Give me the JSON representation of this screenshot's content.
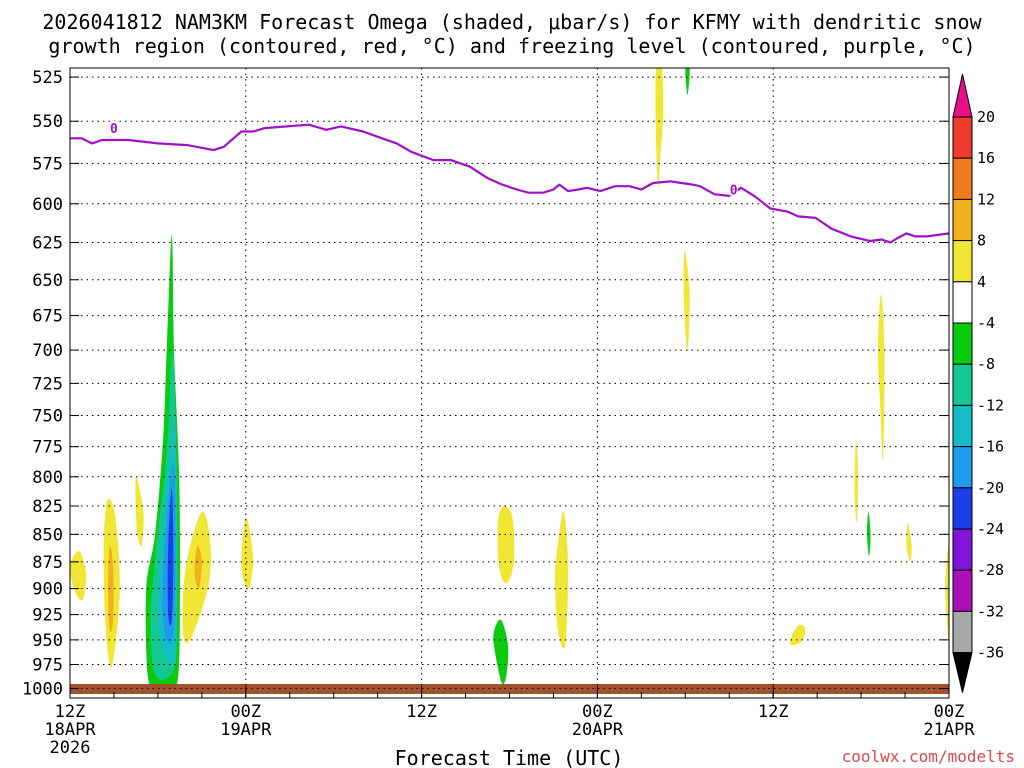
{
  "chart_data": {
    "type": "time-pressure cross-section",
    "title_line1": "2026041812 NAM3KM Forecast Omega (shaded, μbar/s) for KFMY with dendritic snow",
    "title_line2": "growth region (contoured, red, °C) and freezing level (contoured, purple, °C)",
    "xlabel": "Forecast Time (UTC)",
    "credit": "coolwx.com/modelts",
    "y_axis": {
      "labels": [
        "525",
        "550",
        "575",
        "600",
        "625",
        "650",
        "675",
        "700",
        "725",
        "750",
        "775",
        "800",
        "825",
        "850",
        "875",
        "900",
        "925",
        "950",
        "975",
        "1000"
      ],
      "range_hPa": [
        520,
        1010
      ]
    },
    "x_axis": {
      "range_hours": [
        0,
        60
      ],
      "ticks": [
        {
          "hour": 0,
          "line1": "12Z",
          "line2": "18APR",
          "line3": "2026"
        },
        {
          "hour": 12,
          "line1": "00Z",
          "line2": "19APR",
          "line3": ""
        },
        {
          "hour": 24,
          "line1": "12Z",
          "line2": "",
          "line3": ""
        },
        {
          "hour": 36,
          "line1": "00Z",
          "line2": "20APR",
          "line3": ""
        },
        {
          "hour": 48,
          "line1": "12Z",
          "line2": "",
          "line3": ""
        },
        {
          "hour": 60,
          "line1": "00Z",
          "line2": "21APR",
          "line3": ""
        }
      ]
    },
    "colorbar": {
      "labels": [
        "20",
        "16",
        "12",
        "8",
        "4",
        "-4",
        "-8",
        "-12",
        "-16",
        "-20",
        "-24",
        "-28",
        "-32",
        "-36"
      ],
      "bins": [
        {
          "color": "#ea0f89"
        },
        {
          "color": "#ef3a2d"
        },
        {
          "color": "#f27b1d"
        },
        {
          "color": "#efb21e"
        },
        {
          "color": "#f0e633"
        },
        {
          "color": "#ffffff"
        },
        {
          "color": "#0bcb0f"
        },
        {
          "color": "#13c892"
        },
        {
          "color": "#13bcc6"
        },
        {
          "color": "#1e9cec"
        },
        {
          "color": "#1e3ee8"
        },
        {
          "color": "#7f15d9"
        },
        {
          "color": "#aa0fb9"
        },
        {
          "color": "#a8a8a8"
        },
        {
          "color": "#000000"
        }
      ]
    },
    "freezing_level": {
      "label": "0",
      "color": "#a010c8",
      "label_points": [
        {
          "hour": 3.0,
          "hPa": 554
        },
        {
          "hour": 45.3,
          "hPa": 591
        }
      ],
      "points": [
        {
          "hour": 0.0,
          "hPa": 560
        },
        {
          "hour": 0.8,
          "hPa": 560
        },
        {
          "hour": 1.5,
          "hPa": 563
        },
        {
          "hour": 2.2,
          "hPa": 561
        },
        {
          "hour": 4.0,
          "hPa": 561
        },
        {
          "hour": 6.0,
          "hPa": 563
        },
        {
          "hour": 8.0,
          "hPa": 564
        },
        {
          "hour": 9.8,
          "hPa": 567
        },
        {
          "hour": 10.5,
          "hPa": 565
        },
        {
          "hour": 11.7,
          "hPa": 556
        },
        {
          "hour": 12.5,
          "hPa": 556
        },
        {
          "hour": 13.3,
          "hPa": 554
        },
        {
          "hour": 14.8,
          "hPa": 553
        },
        {
          "hour": 16.3,
          "hPa": 552
        },
        {
          "hour": 17.5,
          "hPa": 555
        },
        {
          "hour": 18.5,
          "hPa": 553
        },
        {
          "hour": 20.0,
          "hPa": 556
        },
        {
          "hour": 21.3,
          "hPa": 560
        },
        {
          "hour": 22.3,
          "hPa": 563
        },
        {
          "hour": 23.3,
          "hPa": 568
        },
        {
          "hour": 24.8,
          "hPa": 573
        },
        {
          "hour": 26.0,
          "hPa": 573
        },
        {
          "hour": 27.3,
          "hPa": 577
        },
        {
          "hour": 28.5,
          "hPa": 584
        },
        {
          "hour": 29.5,
          "hPa": 588
        },
        {
          "hour": 30.5,
          "hPa": 591
        },
        {
          "hour": 31.3,
          "hPa": 593
        },
        {
          "hour": 32.3,
          "hPa": 593
        },
        {
          "hour": 33.0,
          "hPa": 591
        },
        {
          "hour": 33.4,
          "hPa": 588
        },
        {
          "hour": 34.0,
          "hPa": 592
        },
        {
          "hour": 34.7,
          "hPa": 591
        },
        {
          "hour": 35.3,
          "hPa": 590
        },
        {
          "hour": 36.2,
          "hPa": 592
        },
        {
          "hour": 37.2,
          "hPa": 589
        },
        {
          "hour": 38.2,
          "hPa": 589
        },
        {
          "hour": 39.0,
          "hPa": 591
        },
        {
          "hour": 39.8,
          "hPa": 587
        },
        {
          "hour": 41.0,
          "hPa": 586
        },
        {
          "hour": 42.5,
          "hPa": 588
        },
        {
          "hour": 43.0,
          "hPa": 589
        },
        {
          "hour": 44.0,
          "hPa": 594
        },
        {
          "hour": 45.0,
          "hPa": 595
        },
        {
          "hour": 45.8,
          "hPa": 590
        },
        {
          "hour": 46.7,
          "hPa": 595
        },
        {
          "hour": 47.8,
          "hPa": 603
        },
        {
          "hour": 49.0,
          "hPa": 605
        },
        {
          "hour": 49.7,
          "hPa": 608
        },
        {
          "hour": 50.9,
          "hPa": 609
        },
        {
          "hour": 52.0,
          "hPa": 616
        },
        {
          "hour": 53.3,
          "hPa": 621
        },
        {
          "hour": 54.6,
          "hPa": 624
        },
        {
          "hour": 55.4,
          "hPa": 623
        },
        {
          "hour": 56.0,
          "hPa": 625
        },
        {
          "hour": 56.5,
          "hPa": 622
        },
        {
          "hour": 57.1,
          "hPa": 619
        },
        {
          "hour": 57.7,
          "hPa": 621
        },
        {
          "hour": 58.5,
          "hPa": 621
        },
        {
          "hour": 60.0,
          "hPa": 619
        }
      ]
    },
    "ground_color": "#a0522d",
    "omega_regions": [
      {
        "name": "omega-green-main",
        "bin": "-8 to -4",
        "color": "#0bcb0f",
        "points": [
          {
            "hour": 6.95,
            "hPa": 620
          },
          {
            "hour": 7.1,
            "hPa": 700
          },
          {
            "hour": 7.45,
            "hPa": 800
          },
          {
            "hour": 7.5,
            "hPa": 900
          },
          {
            "hour": 7.4,
            "hPa": 985
          },
          {
            "hour": 6.9,
            "hPa": 1000
          },
          {
            "hour": 5.9,
            "hPa": 1000
          },
          {
            "hour": 5.3,
            "hPa": 985
          },
          {
            "hour": 5.2,
            "hPa": 900
          },
          {
            "hour": 5.8,
            "hPa": 850
          },
          {
            "hour": 6.35,
            "hPa": 770
          },
          {
            "hour": 6.6,
            "hPa": 700
          }
        ]
      },
      {
        "name": "omega-teal-core",
        "bin": "-12 to -8",
        "color": "#13c892",
        "points": [
          {
            "hour": 7.0,
            "hPa": 700
          },
          {
            "hour": 7.3,
            "hPa": 800
          },
          {
            "hour": 7.3,
            "hPa": 950
          },
          {
            "hour": 6.9,
            "hPa": 985
          },
          {
            "hour": 5.8,
            "hPa": 985
          },
          {
            "hour": 5.5,
            "hPa": 930
          },
          {
            "hour": 5.9,
            "hPa": 860
          },
          {
            "hour": 6.6,
            "hPa": 780
          }
        ]
      },
      {
        "name": "omega-cyan-core",
        "bin": "-16 to -12",
        "color": "#13bcc6",
        "points": [
          {
            "hour": 7.1,
            "hPa": 755
          },
          {
            "hour": 7.25,
            "hPa": 850
          },
          {
            "hour": 7.15,
            "hPa": 965
          },
          {
            "hour": 6.4,
            "hPa": 960
          },
          {
            "hour": 6.0,
            "hPa": 920
          },
          {
            "hour": 6.5,
            "hPa": 830
          }
        ]
      },
      {
        "name": "omega-blue-core",
        "bin": "-20 to -16",
        "color": "#1e9cec",
        "points": [
          {
            "hour": 7.1,
            "hPa": 790
          },
          {
            "hour": 7.2,
            "hPa": 870
          },
          {
            "hour": 7.05,
            "hPa": 945
          },
          {
            "hour": 6.5,
            "hPa": 945
          },
          {
            "hour": 6.3,
            "hPa": 900
          },
          {
            "hour": 6.7,
            "hPa": 820
          }
        ]
      },
      {
        "name": "omega-darkblue-core",
        "bin": "-24 to -20",
        "color": "#1e3ee8",
        "points": [
          {
            "hour": 6.95,
            "hPa": 810
          },
          {
            "hour": 7.05,
            "hPa": 870
          },
          {
            "hour": 6.95,
            "hPa": 930
          },
          {
            "hour": 6.7,
            "hPa": 925
          },
          {
            "hour": 6.7,
            "hPa": 860
          }
        ]
      },
      {
        "name": "omega-yellow-1",
        "bin": "4 to 8",
        "color": "#f0e633",
        "points": [
          {
            "hour": 0.0,
            "hPa": 880
          },
          {
            "hour": 0.6,
            "hPa": 865
          },
          {
            "hour": 1.1,
            "hPa": 885
          },
          {
            "hour": 0.9,
            "hPa": 910
          },
          {
            "hour": 0.4,
            "hPa": 905
          }
        ]
      },
      {
        "name": "omega-yellow-2",
        "bin": "4 to 8",
        "color": "#f0e633",
        "points": [
          {
            "hour": 2.55,
            "hPa": 820
          },
          {
            "hour": 3.1,
            "hPa": 835
          },
          {
            "hour": 3.4,
            "hPa": 900
          },
          {
            "hour": 3.0,
            "hPa": 965
          },
          {
            "hour": 2.7,
            "hPa": 975
          },
          {
            "hour": 2.4,
            "hPa": 930
          },
          {
            "hour": 2.3,
            "hPa": 860
          }
        ]
      },
      {
        "name": "omega-orange-2",
        "bin": "8 to 12",
        "color": "#efb21e",
        "points": [
          {
            "hour": 2.7,
            "hPa": 860
          },
          {
            "hour": 2.95,
            "hPa": 880
          },
          {
            "hour": 2.95,
            "hPa": 930
          },
          {
            "hour": 2.7,
            "hPa": 940
          },
          {
            "hour": 2.6,
            "hPa": 900
          }
        ]
      },
      {
        "name": "omega-yellow-3",
        "bin": "4 to 8",
        "color": "#f0e633",
        "points": [
          {
            "hour": 4.5,
            "hPa": 800
          },
          {
            "hour": 5.0,
            "hPa": 830
          },
          {
            "hour": 4.9,
            "hPa": 860
          },
          {
            "hour": 4.55,
            "hPa": 845
          }
        ]
      },
      {
        "name": "omega-yellow-4",
        "bin": "4 to 8",
        "color": "#f0e633",
        "points": [
          {
            "hour": 9.0,
            "hPa": 830
          },
          {
            "hour": 9.6,
            "hPa": 860
          },
          {
            "hour": 9.4,
            "hPa": 900
          },
          {
            "hour": 8.2,
            "hPa": 950
          },
          {
            "hour": 7.7,
            "hPa": 940
          },
          {
            "hour": 7.9,
            "hPa": 880
          }
        ]
      },
      {
        "name": "omega-orange-4",
        "bin": "8 to 12",
        "color": "#efb21e",
        "points": [
          {
            "hour": 8.7,
            "hPa": 860
          },
          {
            "hour": 9.0,
            "hPa": 875
          },
          {
            "hour": 8.8,
            "hPa": 900
          },
          {
            "hour": 8.5,
            "hPa": 885
          }
        ]
      },
      {
        "name": "omega-yellow-5",
        "bin": "4 to 8",
        "color": "#f0e633",
        "points": [
          {
            "hour": 12.0,
            "hPa": 835
          },
          {
            "hour": 12.5,
            "hPa": 870
          },
          {
            "hour": 12.2,
            "hPa": 900
          },
          {
            "hour": 11.7,
            "hPa": 880
          }
        ]
      },
      {
        "name": "omega-yellow-6",
        "bin": "4 to 8",
        "color": "#f0e633",
        "points": [
          {
            "hour": 29.6,
            "hPa": 825
          },
          {
            "hour": 30.2,
            "hPa": 835
          },
          {
            "hour": 30.3,
            "hPa": 875
          },
          {
            "hour": 29.8,
            "hPa": 895
          },
          {
            "hour": 29.3,
            "hPa": 880
          },
          {
            "hour": 29.2,
            "hPa": 840
          }
        ]
      },
      {
        "name": "omega-green-2",
        "bin": "-8 to -4",
        "color": "#0bcb0f",
        "points": [
          {
            "hour": 29.4,
            "hPa": 930
          },
          {
            "hour": 29.9,
            "hPa": 955
          },
          {
            "hour": 29.8,
            "hPa": 985
          },
          {
            "hour": 29.5,
            "hPa": 995
          },
          {
            "hour": 29.1,
            "hPa": 970
          },
          {
            "hour": 28.9,
            "hPa": 945
          }
        ]
      },
      {
        "name": "omega-yellow-7",
        "bin": "4 to 8",
        "color": "#f0e633",
        "points": [
          {
            "hour": 33.7,
            "hPa": 830
          },
          {
            "hour": 34.0,
            "hPa": 880
          },
          {
            "hour": 33.8,
            "hPa": 955
          },
          {
            "hour": 33.3,
            "hPa": 940
          },
          {
            "hour": 33.1,
            "hPa": 890
          },
          {
            "hour": 33.3,
            "hPa": 860
          }
        ]
      },
      {
        "name": "omega-yellow-8",
        "bin": "4 to 8",
        "color": "#f0e633",
        "points": [
          {
            "hour": 40.0,
            "hPa": 520
          },
          {
            "hour": 40.4,
            "hPa": 520
          },
          {
            "hour": 40.5,
            "hPa": 545
          },
          {
            "hour": 40.3,
            "hPa": 570
          },
          {
            "hour": 40.15,
            "hPa": 590
          },
          {
            "hour": 40.0,
            "hPa": 560
          }
        ]
      },
      {
        "name": "omega-green-3",
        "bin": "-8 to -4",
        "color": "#0bcb0f",
        "points": [
          {
            "hour": 42.0,
            "hPa": 520
          },
          {
            "hour": 42.3,
            "hPa": 520
          },
          {
            "hour": 42.15,
            "hPa": 535
          }
        ]
      },
      {
        "name": "omega-yellow-9",
        "bin": "4 to 8",
        "color": "#f0e633",
        "points": [
          {
            "hour": 41.95,
            "hPa": 630
          },
          {
            "hour": 42.3,
            "hPa": 660
          },
          {
            "hour": 42.15,
            "hPa": 700
          },
          {
            "hour": 41.9,
            "hPa": 665
          }
        ]
      },
      {
        "name": "omega-yellow-10",
        "bin": "4 to 8",
        "color": "#f0e633",
        "points": [
          {
            "hour": 55.35,
            "hPa": 660
          },
          {
            "hour": 55.6,
            "hPa": 700
          },
          {
            "hour": 55.5,
            "hPa": 785
          },
          {
            "hour": 55.3,
            "hPa": 740
          },
          {
            "hour": 55.15,
            "hPa": 700
          }
        ]
      },
      {
        "name": "omega-yellow-11",
        "bin": "4 to 8",
        "color": "#f0e633",
        "points": [
          {
            "hour": 53.65,
            "hPa": 770
          },
          {
            "hour": 53.8,
            "hPa": 800
          },
          {
            "hour": 53.7,
            "hPa": 840
          },
          {
            "hour": 53.55,
            "hPa": 810
          }
        ]
      },
      {
        "name": "omega-green-4",
        "bin": "-8 to -4",
        "color": "#0bcb0f",
        "points": [
          {
            "hour": 54.5,
            "hPa": 830
          },
          {
            "hour": 54.65,
            "hPa": 850
          },
          {
            "hour": 54.55,
            "hPa": 870
          },
          {
            "hour": 54.4,
            "hPa": 850
          }
        ]
      },
      {
        "name": "omega-yellow-12",
        "bin": "4 to 8",
        "color": "#f0e633",
        "points": [
          {
            "hour": 57.2,
            "hPa": 840
          },
          {
            "hour": 57.45,
            "hPa": 860
          },
          {
            "hour": 57.35,
            "hPa": 875
          },
          {
            "hour": 57.1,
            "hPa": 860
          }
        ]
      },
      {
        "name": "omega-yellow-13",
        "bin": "4 to 8",
        "color": "#f0e633",
        "points": [
          {
            "hour": 60.0,
            "hPa": 860
          },
          {
            "hour": 59.75,
            "hPa": 895
          },
          {
            "hour": 59.85,
            "hPa": 930
          },
          {
            "hour": 60.0,
            "hPa": 945
          }
        ]
      },
      {
        "name": "omega-yellow-14",
        "bin": "4 to 8",
        "color": "#f0e633",
        "points": [
          {
            "hour": 49.3,
            "hPa": 945
          },
          {
            "hour": 49.8,
            "hPa": 935
          },
          {
            "hour": 50.2,
            "hPa": 940
          },
          {
            "hour": 49.9,
            "hPa": 952
          },
          {
            "hour": 49.2,
            "hPa": 955
          }
        ]
      }
    ]
  }
}
